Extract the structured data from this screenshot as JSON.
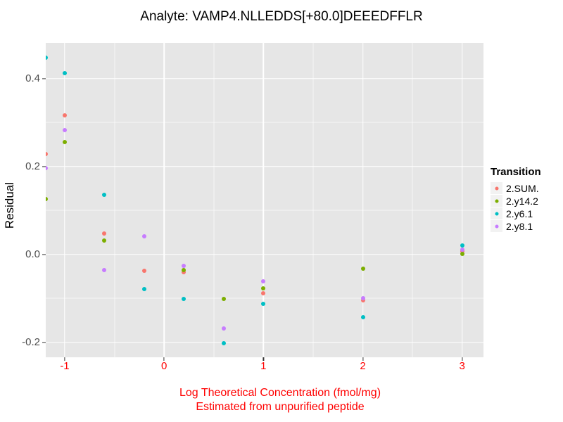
{
  "title": "Analyte: VAMP4.NLLEDDS[+80.0]DEEEDFFLR",
  "styles": {
    "panel_bg": "#E6E6E6",
    "grid_color": "#FFFFFF",
    "x_axis_text_color": "#FF0000",
    "y_axis_text_color": "#4D4D4D",
    "title_color": "#000000"
  },
  "chart_data": {
    "type": "scatter",
    "title": "Analyte: VAMP4.NLLEDDS[+80.0]DEEEDFFLR",
    "xlabel_line1": "Log Theoretical Concentration (fmol/mg)",
    "xlabel_line2": "Estimated from unpurified peptide",
    "ylabel": "Residual",
    "x_range": [
      -1.1912,
      3.2145
    ],
    "y_range": [
      -0.2341,
      0.4811
    ],
    "x_tick_values": [
      -1,
      0,
      1,
      2,
      3
    ],
    "x_tick_labels": [
      "-1",
      "0",
      "1",
      "2",
      "3"
    ],
    "y_tick_values": [
      0.4,
      0.2,
      0.0,
      -0.2
    ],
    "y_tick_labels": [
      "0.4",
      "0.2",
      "0.0",
      "-0.2"
    ],
    "x_minor_values": [
      -0.5,
      0.5,
      1.5,
      2.5
    ],
    "y_minor_values": [
      0.3,
      0.1,
      -0.1
    ],
    "grid": true,
    "legend_title": "Transition",
    "legend_position": "right",
    "series": [
      {
        "name": "2.SUM.",
        "color": "#F8766D",
        "points": [
          [
            -1.19,
            0.229
          ],
          [
            -1,
            0.317
          ],
          [
            -0.6,
            0.048
          ],
          [
            -0.2,
            -0.038
          ],
          [
            0.2,
            -0.041
          ],
          [
            1,
            -0.088
          ],
          [
            2,
            -0.105
          ],
          [
            3,
            0.008
          ]
        ]
      },
      {
        "name": "2.y14.2",
        "color": "#7CAE00",
        "points": [
          [
            -1.19,
            0.126
          ],
          [
            -1,
            0.256
          ],
          [
            -0.6,
            0.032
          ],
          [
            0.2,
            -0.036
          ],
          [
            0.6,
            -0.102
          ],
          [
            1,
            -0.077
          ],
          [
            2,
            -0.032
          ],
          [
            3,
            0.001
          ]
        ]
      },
      {
        "name": "2.y6.1",
        "color": "#00BFC4",
        "points": [
          [
            -1.19,
            0.448
          ],
          [
            -1,
            0.412
          ],
          [
            -0.6,
            0.135
          ],
          [
            -0.2,
            -0.079
          ],
          [
            0.2,
            -0.102
          ],
          [
            0.6,
            -0.202
          ],
          [
            1,
            -0.112
          ],
          [
            2,
            -0.143
          ],
          [
            3,
            0.021
          ]
        ]
      },
      {
        "name": "2.y8.1",
        "color": "#C77CFF",
        "points": [
          [
            -1.19,
            0.197
          ],
          [
            -1,
            0.283
          ],
          [
            -0.6,
            -0.036
          ],
          [
            -0.2,
            0.041
          ],
          [
            0.2,
            -0.026
          ],
          [
            0.6,
            -0.169
          ],
          [
            1,
            -0.061
          ],
          [
            2,
            -0.1
          ],
          [
            3,
            0.011
          ]
        ]
      }
    ]
  }
}
